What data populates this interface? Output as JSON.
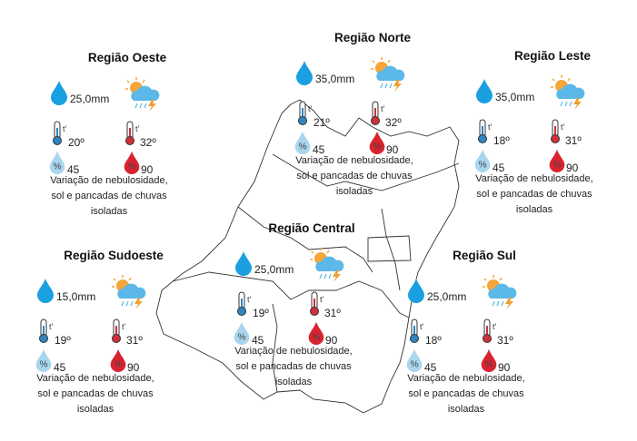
{
  "colors": {
    "rain": "#1aa0e0",
    "cold": "#2e86c1",
    "hot": "#d0303a",
    "humidity_low": "#a9d6ef",
    "humidity_high": "#d9232f",
    "cloud": "#5bb8e8",
    "sun": "#f4a63a",
    "bolt": "#f0a030"
  },
  "icons": {
    "rain": "raindrop-icon",
    "weather": "sun-cloud-rain-lightning-icon",
    "thermometer": "thermometer-icon",
    "humidity": "humidity-drop-icon"
  },
  "regions": [
    {
      "id": "oeste",
      "title": "Região Oeste",
      "rain": "25,0mm",
      "temp_min": "20º",
      "temp_max": "32º",
      "humidity_min": "45",
      "humidity_max": "90",
      "description": [
        "Variação de nebulosidade,",
        "sol e pancadas de chuvas",
        "isoladas"
      ]
    },
    {
      "id": "norte",
      "title": "Região Norte",
      "rain": "35,0mm",
      "temp_min": "21º",
      "temp_max": "32º",
      "humidity_min": "45",
      "humidity_max": "90",
      "description": [
        "Variação de nebulosidade,",
        "sol e pancadas de chuvas",
        "isoladas"
      ]
    },
    {
      "id": "leste",
      "title": "Região Leste",
      "rain": "35,0mm",
      "temp_min": "18º",
      "temp_max": "31º",
      "humidity_min": "45",
      "humidity_max": "90",
      "description": [
        "Variação de nebulosidade,",
        "sol e pancadas de chuvas",
        "isoladas"
      ]
    },
    {
      "id": "sudoeste",
      "title": "Região Sudoeste",
      "rain": "15,0mm",
      "temp_min": "19º",
      "temp_max": "31º",
      "humidity_min": "45",
      "humidity_max": "90",
      "description": [
        "Variação de nebulosidade,",
        "sol e pancadas de chuvas",
        "isoladas"
      ]
    },
    {
      "id": "central",
      "title": "Região Central",
      "rain": "25,0mm",
      "temp_min": "19º",
      "temp_max": "31º",
      "humidity_min": "45",
      "humidity_max": "90",
      "description": [
        "Variação de nebulosidade,",
        "sol e pancadas de chuvas",
        "isoladas"
      ]
    },
    {
      "id": "sul",
      "title": "Região Sul",
      "rain": "25,0mm",
      "temp_min": "18º",
      "temp_max": "31º",
      "humidity_min": "45",
      "humidity_max": "90",
      "description": [
        "Variação de nebulosidade,",
        "sol e pancadas de chuvas",
        "isoladas"
      ]
    }
  ],
  "thermometer_label": "t'"
}
